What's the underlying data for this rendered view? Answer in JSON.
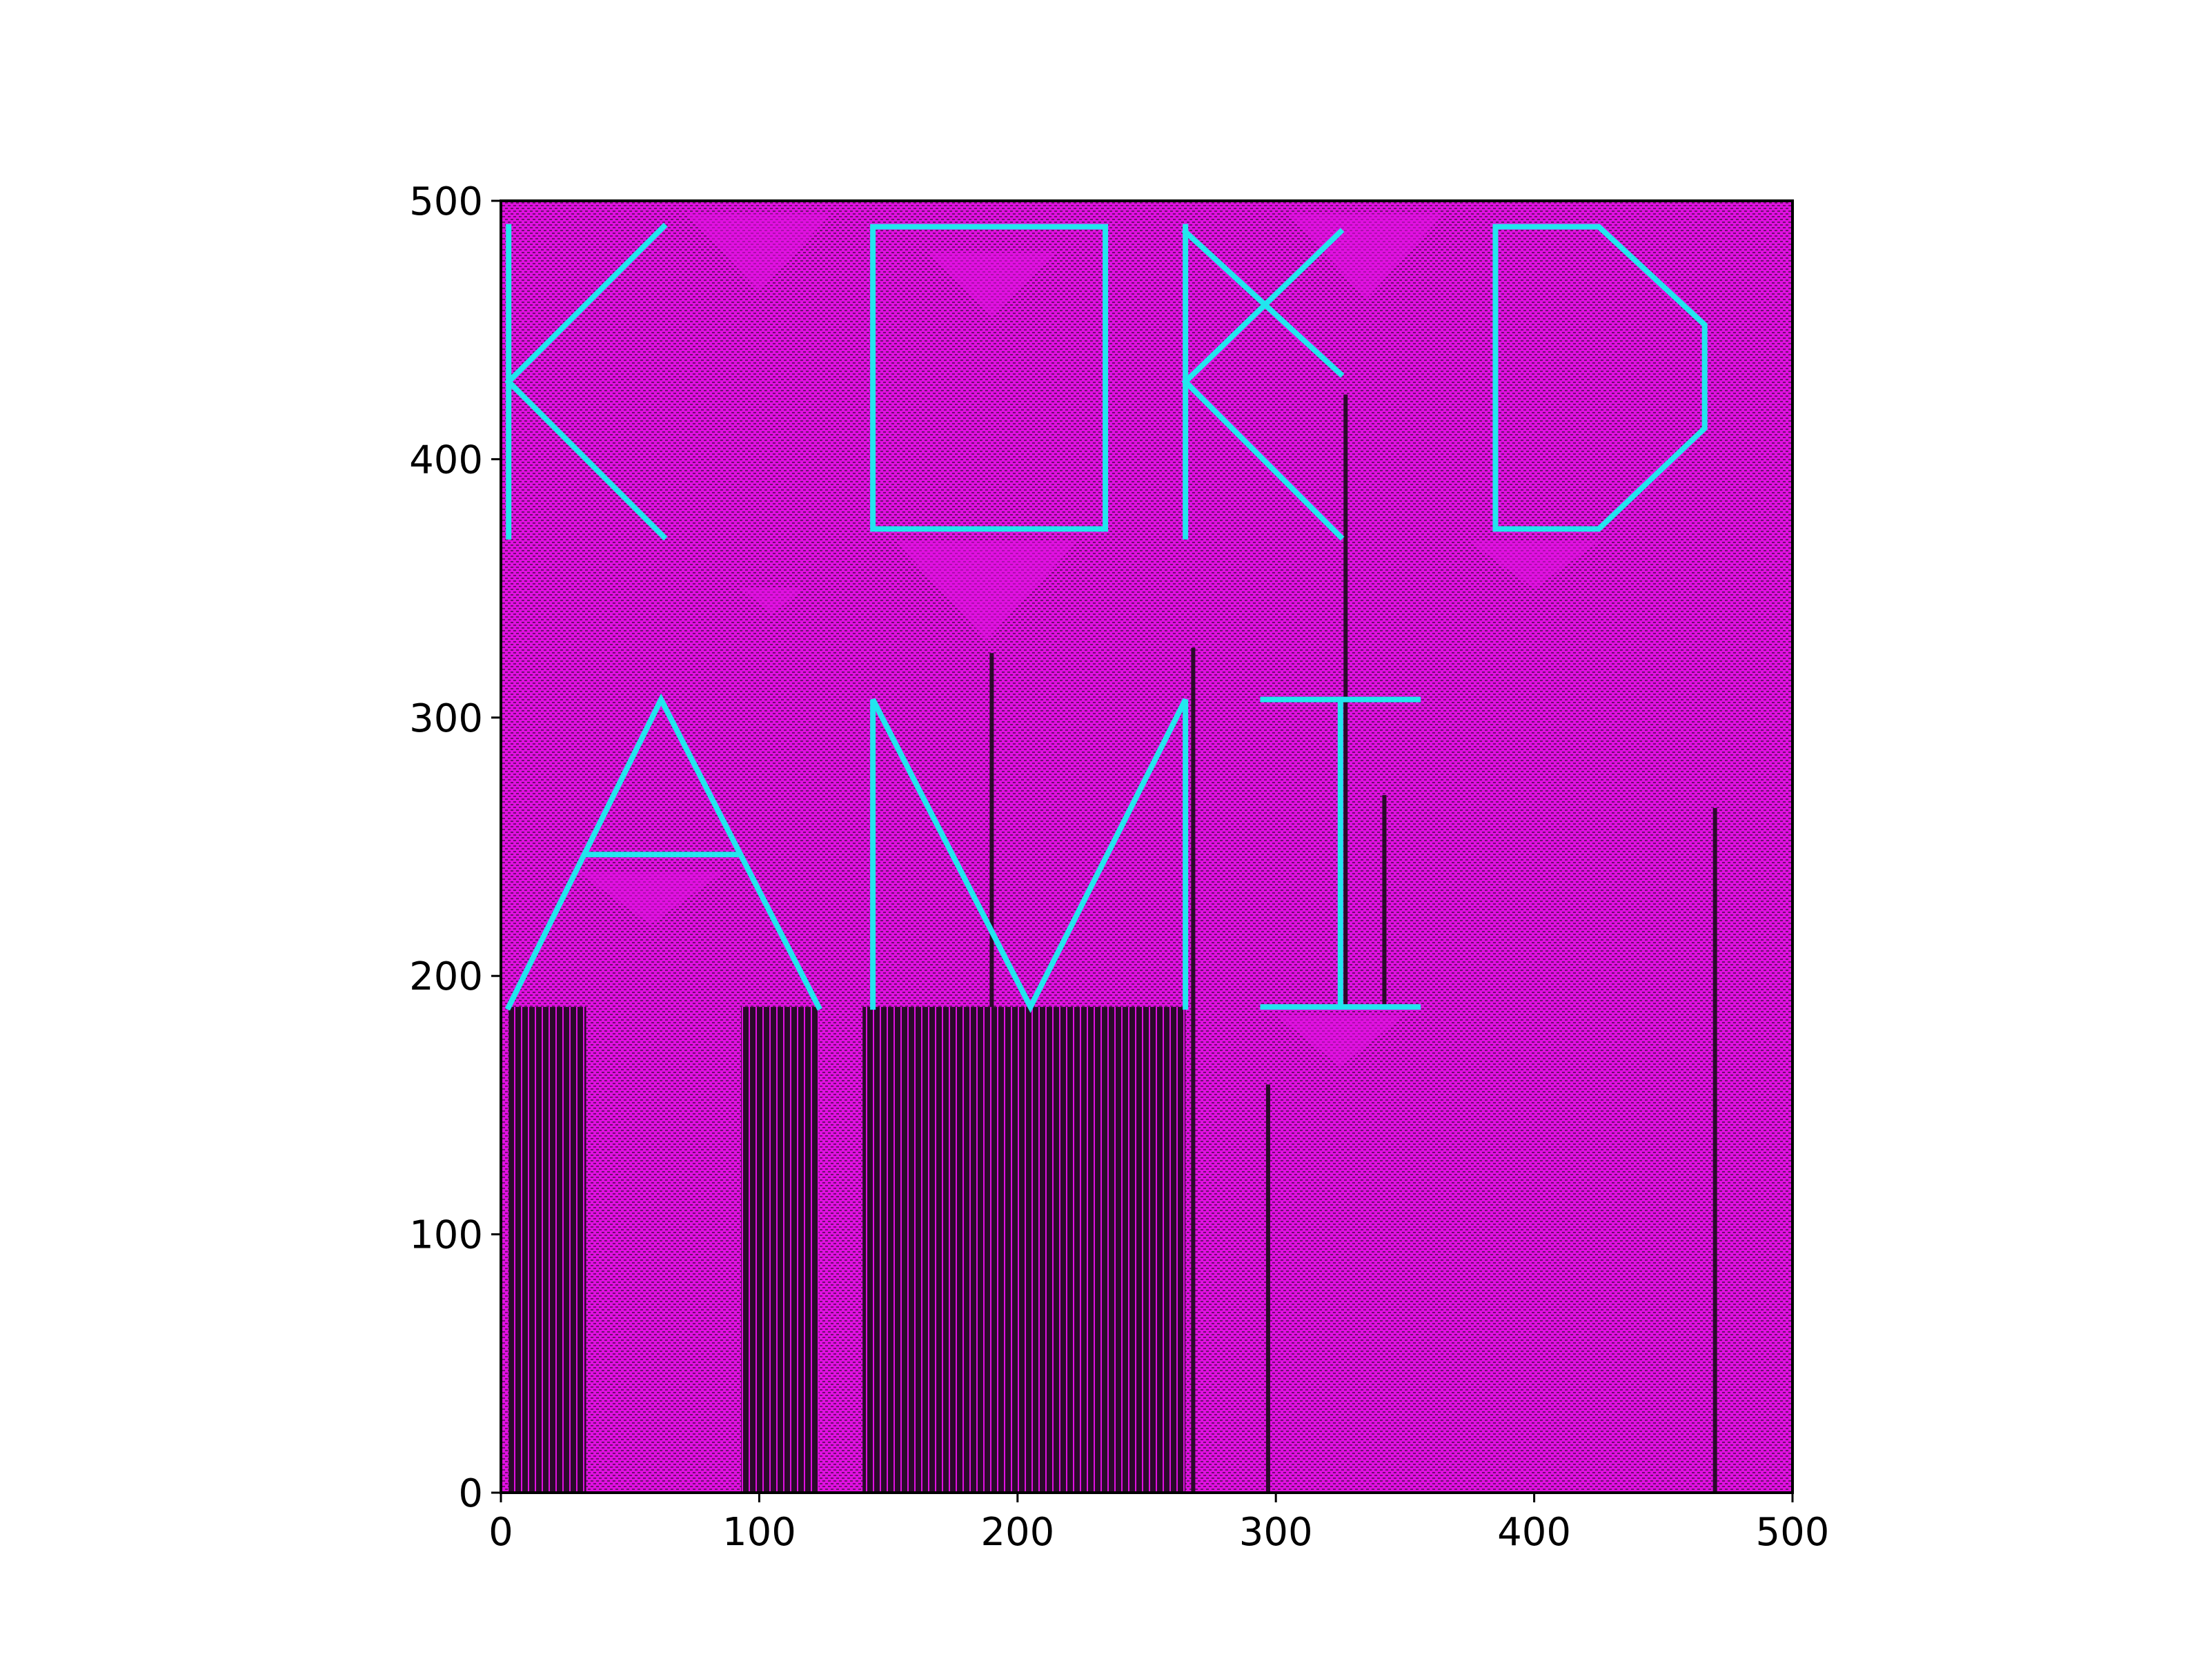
{
  "chart_data": {
    "type": "heatmap",
    "title": "",
    "xlabel": "",
    "ylabel": "",
    "xlim": [
      0,
      500
    ],
    "ylim": [
      0,
      500
    ],
    "grid": false,
    "x_ticks": [
      0,
      100,
      200,
      300,
      400,
      500
    ],
    "y_ticks": [
      0,
      100,
      200,
      300,
      400,
      500
    ],
    "x_tick_labels": [
      "0",
      "100",
      "200",
      "300",
      "400",
      "500"
    ],
    "y_tick_labels": [
      "0",
      "100",
      "200",
      "300",
      "400",
      "500"
    ],
    "background_color": "#e010e0",
    "pattern_color": "#2a0a2a",
    "overlay_color": "#22e6ee",
    "overlay_text": "KOKD AMI",
    "overlay_segments": [
      {
        "name": "K1-stem",
        "points": [
          [
            3,
            490
          ],
          [
            3,
            370
          ]
        ]
      },
      {
        "name": "K1-arm-up",
        "points": [
          [
            3,
            430
          ],
          [
            63,
            490
          ]
        ]
      },
      {
        "name": "K1-arm-down",
        "points": [
          [
            3,
            430
          ],
          [
            63,
            370
          ]
        ]
      },
      {
        "name": "O",
        "points": [
          [
            144,
            490
          ],
          [
            234,
            490
          ],
          [
            234,
            373
          ],
          [
            144,
            373
          ],
          [
            144,
            490
          ]
        ]
      },
      {
        "name": "K2-stem",
        "points": [
          [
            265,
            490
          ],
          [
            265,
            370
          ]
        ]
      },
      {
        "name": "K2-arm-up",
        "points": [
          [
            265,
            430
          ],
          [
            325,
            488
          ]
        ]
      },
      {
        "name": "K2-arm-down",
        "points": [
          [
            265,
            488
          ],
          [
            325,
            433
          ]
        ]
      },
      {
        "name": "K2-leg",
        "points": [
          [
            265,
            430
          ],
          [
            325,
            370
          ]
        ]
      },
      {
        "name": "D",
        "points": [
          [
            385,
            490
          ],
          [
            425,
            490
          ],
          [
            466,
            452
          ],
          [
            466,
            412
          ],
          [
            425,
            373
          ],
          [
            385,
            373
          ],
          [
            385,
            490
          ]
        ]
      },
      {
        "name": "A",
        "points": [
          [
            3,
            188
          ],
          [
            62,
            307
          ],
          [
            123,
            188
          ]
        ]
      },
      {
        "name": "A-bar",
        "points": [
          [
            33,
            247
          ],
          [
            92,
            247
          ]
        ]
      },
      {
        "name": "M",
        "points": [
          [
            144,
            188
          ],
          [
            144,
            307
          ],
          [
            205,
            188
          ],
          [
            265,
            307
          ],
          [
            265,
            188
          ]
        ]
      },
      {
        "name": "I-top",
        "points": [
          [
            295,
            307
          ],
          [
            355,
            307
          ]
        ]
      },
      {
        "name": "I-stem",
        "points": [
          [
            325,
            307
          ],
          [
            325,
            188
          ]
        ]
      },
      {
        "name": "I-bottom",
        "points": [
          [
            295,
            188
          ],
          [
            355,
            188
          ]
        ]
      }
    ],
    "dark_stripe_regions": [
      {
        "x": [
          3,
          33
        ],
        "y": [
          0,
          188
        ]
      },
      {
        "x": [
          93,
          123
        ],
        "y": [
          0,
          188
        ]
      },
      {
        "x": [
          140,
          265
        ],
        "y": [
          0,
          188
        ]
      }
    ],
    "dark_vertical_lines": [
      {
        "x": 190,
        "y": [
          188,
          325
        ]
      },
      {
        "x": 268,
        "y": [
          0,
          327
        ]
      },
      {
        "x": 297,
        "y": [
          0,
          158
        ]
      },
      {
        "x": 327,
        "y": [
          188,
          425
        ]
      },
      {
        "x": 342,
        "y": [
          188,
          270
        ]
      },
      {
        "x": 470,
        "y": [
          0,
          265
        ]
      }
    ],
    "light_triangles": [
      {
        "apex": [
          100,
          465
        ],
        "base_y": 495,
        "half_width": 28
      },
      {
        "apex": [
          190,
          455
        ],
        "base_y": 480,
        "half_width": 25
      },
      {
        "apex": [
          105,
          340
        ],
        "base_y": 350,
        "half_width": 12
      },
      {
        "apex": [
          188,
          330
        ],
        "base_y": 368,
        "half_width": 35
      },
      {
        "apex": [
          335,
          462
        ],
        "base_y": 495,
        "half_width": 30
      },
      {
        "apex": [
          400,
          350
        ],
        "base_y": 368,
        "half_width": 25
      },
      {
        "apex": [
          58,
          220
        ],
        "base_y": 240,
        "half_width": 28
      },
      {
        "apex": [
          325,
          165
        ],
        "base_y": 185,
        "half_width": 25
      }
    ]
  }
}
